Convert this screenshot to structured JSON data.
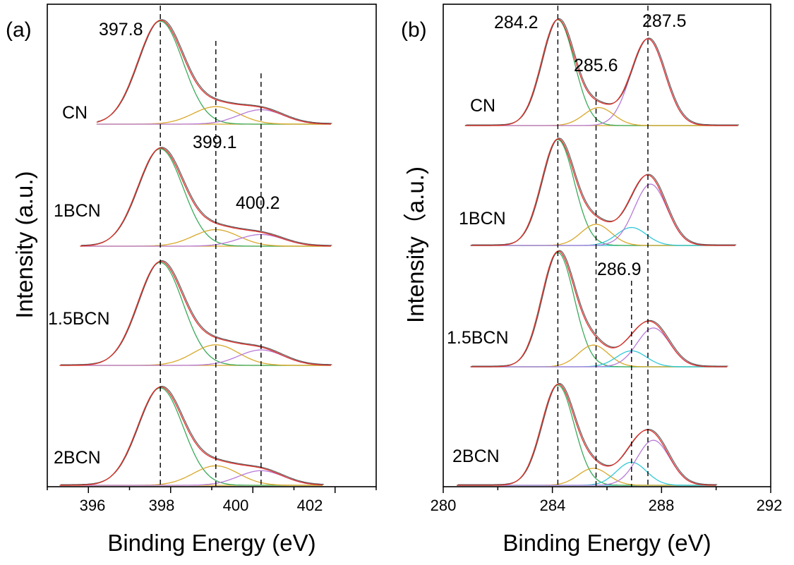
{
  "chart_data": [
    {
      "type": "line",
      "panel_label": "(a)",
      "xlabel": "Binding Energy (eV)",
      "ylabel": "Intensity (a.u.)",
      "xlim": [
        395,
        403
      ],
      "xticks": [
        "396",
        "398",
        "400",
        "402"
      ],
      "y_ticks_shown": false,
      "reference_lines": [
        397.75,
        399.1,
        400.2
      ],
      "peak_labels": [
        "397.8",
        "399.1",
        "400.2"
      ],
      "colors": {
        "envelope": "#e0302a",
        "raw": "#555555",
        "p1": "#3aaa5a",
        "p2": "#d8a82a",
        "p3": "#b77ad8",
        "p4": "#30c8d8",
        "base": "#8fb030"
      },
      "spectra": [
        {
          "label": "CN",
          "x_range": [
            396.2,
            401.9
          ],
          "components": [
            {
              "center": 397.75,
              "height": 1.0,
              "width": 0.55
            },
            {
              "center": 399.1,
              "height": 0.17,
              "width": 0.55
            },
            {
              "center": 400.2,
              "height": 0.14,
              "width": 0.55
            }
          ]
        },
        {
          "label": "1BCN",
          "x_range": [
            395.8,
            401.9
          ],
          "components": [
            {
              "center": 397.75,
              "height": 1.0,
              "width": 0.55
            },
            {
              "center": 399.1,
              "height": 0.17,
              "width": 0.55
            },
            {
              "center": 400.2,
              "height": 0.12,
              "width": 0.55
            }
          ]
        },
        {
          "label": "1.5BCN",
          "x_range": [
            395.3,
            401.9
          ],
          "components": [
            {
              "center": 397.75,
              "height": 1.0,
              "width": 0.55
            },
            {
              "center": 399.1,
              "height": 0.2,
              "width": 0.55
            },
            {
              "center": 400.2,
              "height": 0.15,
              "width": 0.55
            }
          ]
        },
        {
          "label": "2BCN",
          "x_range": [
            395.3,
            401.7
          ],
          "components": [
            {
              "center": 397.75,
              "height": 1.0,
              "width": 0.55
            },
            {
              "center": 399.1,
              "height": 0.2,
              "width": 0.55
            },
            {
              "center": 400.2,
              "height": 0.15,
              "width": 0.55
            }
          ]
        }
      ]
    },
    {
      "type": "line",
      "panel_label": "(b)",
      "xlabel": "Binding Energy (eV)",
      "ylabel": "Intensity（a.u.)",
      "xlim": [
        280,
        292
      ],
      "xticks": [
        "280",
        "284",
        "288",
        "292"
      ],
      "y_ticks_shown": false,
      "reference_lines": [
        284.2,
        285.6,
        286.9,
        287.5
      ],
      "peak_labels": [
        "284.2",
        "285.6",
        "286.9",
        "287.5"
      ],
      "colors": {
        "envelope": "#e0302a",
        "raw": "#555555",
        "p1": "#3aaa5a",
        "p2": "#d8a82a",
        "p3": "#b77ad8",
        "p4": "#30c8d8",
        "base": "#8fb030"
      },
      "spectra": [
        {
          "label": "CN",
          "x_range": [
            280.8,
            290.8
          ],
          "components": [
            {
              "center": 284.2,
              "height": 1.0,
              "width": 0.6
            },
            {
              "center": 285.7,
              "height": 0.17,
              "width": 0.55
            },
            {
              "center": 287.5,
              "height": 0.82,
              "width": 0.62
            }
          ]
        },
        {
          "label": "1BCN",
          "x_range": [
            281.0,
            290.7
          ],
          "components": [
            {
              "center": 284.2,
              "height": 1.0,
              "width": 0.6
            },
            {
              "center": 285.6,
              "height": 0.2,
              "width": 0.55
            },
            {
              "center": 286.9,
              "height": 0.17,
              "width": 0.55
            },
            {
              "center": 287.6,
              "height": 0.58,
              "width": 0.6
            }
          ]
        },
        {
          "label": "1.5BCN",
          "x_range": [
            281.0,
            290.4
          ],
          "components": [
            {
              "center": 284.2,
              "height": 1.0,
              "width": 0.6
            },
            {
              "center": 285.5,
              "height": 0.19,
              "width": 0.55
            },
            {
              "center": 286.9,
              "height": 0.14,
              "width": 0.55
            },
            {
              "center": 287.7,
              "height": 0.34,
              "width": 0.6
            }
          ]
        },
        {
          "label": "2BCN",
          "x_range": [
            280.5,
            290.0
          ],
          "components": [
            {
              "center": 284.2,
              "height": 1.0,
              "width": 0.6
            },
            {
              "center": 285.5,
              "height": 0.17,
              "width": 0.55
            },
            {
              "center": 286.9,
              "height": 0.23,
              "width": 0.55
            },
            {
              "center": 287.7,
              "height": 0.45,
              "width": 0.6
            }
          ]
        }
      ]
    }
  ]
}
